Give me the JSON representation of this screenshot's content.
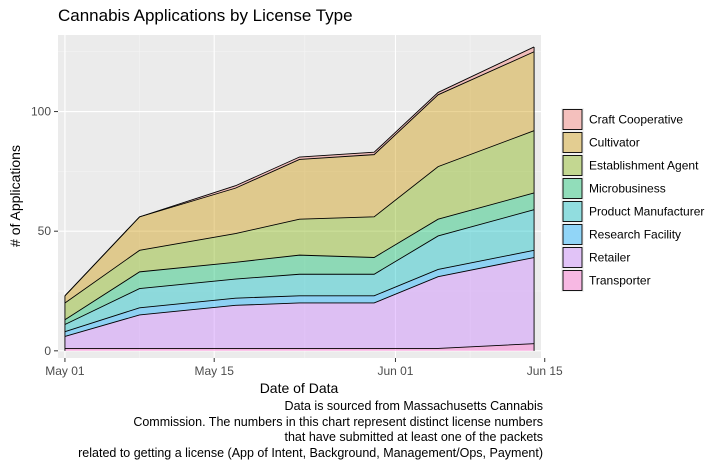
{
  "chart_data": {
    "type": "area",
    "title": "Cannabis Applications by License Type",
    "xlabel": "Date of Data",
    "ylabel": "# of Applications",
    "x": [
      "2018-05-01",
      "2018-05-08",
      "2018-05-17",
      "2018-05-23",
      "2018-05-30",
      "2018-06-05",
      "2018-06-14"
    ],
    "x_ticks": [
      {
        "date": "2018-05-01",
        "label": "May 01"
      },
      {
        "date": "2018-05-15",
        "label": "May 15"
      },
      {
        "date": "2018-06-01",
        "label": "Jun 01"
      },
      {
        "date": "2018-06-15",
        "label": "Jun 15"
      }
    ],
    "ylim": [
      -3,
      132
    ],
    "y_ticks": [
      0,
      50,
      100
    ],
    "grid": true,
    "stacked": true,
    "legend_position": "right",
    "series": [
      {
        "name": "Craft Cooperative",
        "color": "#F8766D",
        "values": [
          0,
          0,
          1,
          1,
          1,
          1,
          2
        ]
      },
      {
        "name": "Cultivator",
        "color": "#CD9600",
        "values": [
          3,
          14,
          19,
          25,
          26,
          30,
          33
        ]
      },
      {
        "name": "Establishment Agent",
        "color": "#7CAE00",
        "values": [
          7,
          9,
          12,
          15,
          17,
          22,
          26
        ]
      },
      {
        "name": "Microbusiness",
        "color": "#00BE67",
        "values": [
          2,
          7,
          7,
          8,
          7,
          7,
          7
        ]
      },
      {
        "name": "Product Manufacturer",
        "color": "#00BFC4",
        "values": [
          3,
          8,
          8,
          9,
          9,
          14,
          17
        ]
      },
      {
        "name": "Research Facility",
        "color": "#00A9FF",
        "values": [
          2,
          3,
          3,
          3,
          3,
          3,
          3
        ]
      },
      {
        "name": "Retailer",
        "color": "#C77CFF",
        "values": [
          5,
          14,
          18,
          19,
          19,
          30,
          36
        ]
      },
      {
        "name": "Transporter",
        "color": "#FF61CC",
        "values": [
          1,
          1,
          1,
          1,
          1,
          1,
          3
        ]
      }
    ]
  },
  "caption": [
    "Data is sourced from Massachusetts Cannabis",
    "Commission.  The numbers in this chart represent distinct license numbers",
    "that have submitted at least one of the packets",
    "related to getting a license (App of Intent, Background, Management/Ops, Payment)"
  ]
}
